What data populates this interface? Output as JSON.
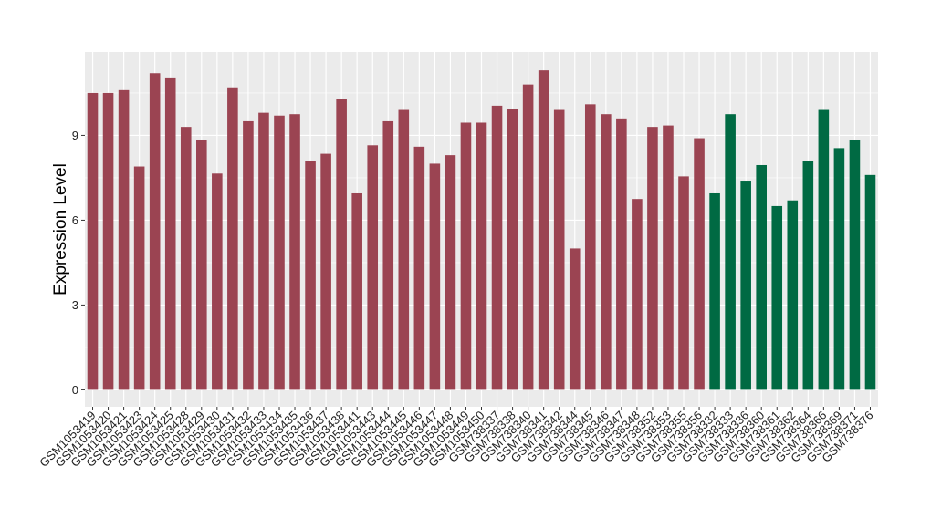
{
  "chart_data": {
    "type": "bar",
    "title": "",
    "xlabel": "",
    "ylabel": "Expression Level",
    "ylim": [
      -0.6,
      11.95
    ],
    "yticks": [
      0,
      3,
      6,
      9
    ],
    "grid": true,
    "legend": "none",
    "colors": {
      "panel_background": "#ebebeb",
      "grid_line": "#ffffff",
      "group_a": "#9b4452",
      "group_b": "#006a43"
    },
    "categories": [
      "GSM1053419",
      "GSM1053420",
      "GSM1053421",
      "GSM1053423",
      "GSM1053424",
      "GSM1053425",
      "GSM1053428",
      "GSM1053429",
      "GSM1053430",
      "GSM1053431",
      "GSM1053432",
      "GSM1053433",
      "GSM1053434",
      "GSM1053435",
      "GSM1053436",
      "GSM1053437",
      "GSM1053438",
      "GSM1053441",
      "GSM1053443",
      "GSM1053444",
      "GSM1053445",
      "GSM1053446",
      "GSM1053447",
      "GSM1053448",
      "GSM1053449",
      "GSM1053450",
      "GSM738337",
      "GSM738338",
      "GSM738340",
      "GSM738341",
      "GSM738342",
      "GSM738344",
      "GSM738345",
      "GSM738346",
      "GSM738347",
      "GSM738348",
      "GSM738352",
      "GSM738353",
      "GSM738355",
      "GSM738356",
      "GSM738332",
      "GSM738333",
      "GSM738336",
      "GSM738360",
      "GSM738361",
      "GSM738362",
      "GSM738364",
      "GSM738366",
      "GSM738369",
      "GSM738371",
      "GSM738376"
    ],
    "values": [
      10.5,
      10.5,
      10.6,
      7.9,
      11.2,
      11.05,
      9.3,
      8.85,
      7.65,
      10.7,
      9.5,
      9.8,
      9.7,
      9.75,
      8.1,
      8.35,
      10.3,
      6.95,
      8.65,
      9.5,
      9.9,
      8.6,
      8.0,
      8.3,
      9.45,
      9.45,
      10.05,
      9.95,
      10.8,
      11.3,
      9.9,
      5.0,
      10.1,
      9.75,
      9.6,
      6.75,
      9.3,
      9.35,
      7.55,
      8.9,
      6.95,
      9.75,
      7.4,
      7.95,
      6.5,
      6.7,
      8.1,
      9.9,
      8.55,
      8.85,
      7.6
    ],
    "groups": [
      "a",
      "a",
      "a",
      "a",
      "a",
      "a",
      "a",
      "a",
      "a",
      "a",
      "a",
      "a",
      "a",
      "a",
      "a",
      "a",
      "a",
      "a",
      "a",
      "a",
      "a",
      "a",
      "a",
      "a",
      "a",
      "a",
      "a",
      "a",
      "a",
      "a",
      "a",
      "a",
      "a",
      "a",
      "a",
      "a",
      "a",
      "a",
      "a",
      "a",
      "b",
      "b",
      "b",
      "b",
      "b",
      "b",
      "b",
      "b",
      "b",
      "b",
      "b"
    ]
  }
}
